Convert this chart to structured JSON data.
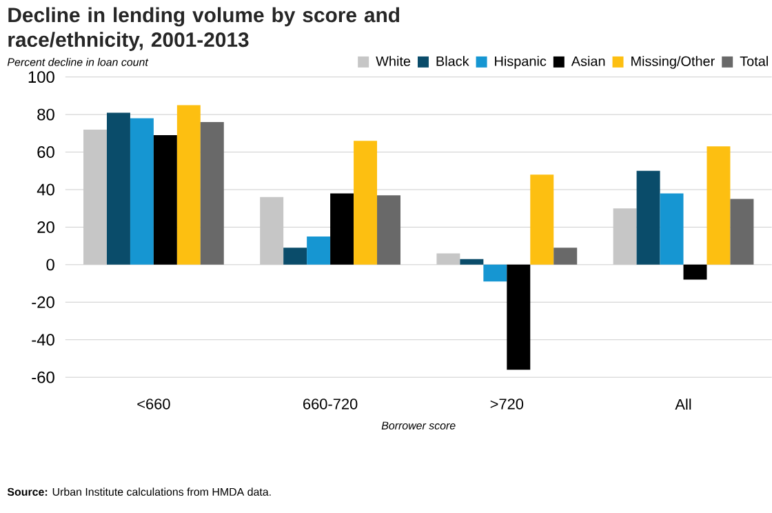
{
  "chart_data": {
    "type": "bar",
    "title": "Decline in lending volume by score and race/ethnicity, 2001-2013",
    "ylabel": "Percent decline in loan count",
    "xlabel": "Borrower score",
    "categories": [
      "<660",
      "660-720",
      ">720",
      "All"
    ],
    "series": [
      {
        "name": "White",
        "color": "#c6c6c6",
        "values": [
          72,
          36,
          6,
          30
        ]
      },
      {
        "name": "Black",
        "color": "#0a4c6a",
        "values": [
          81,
          9,
          3,
          50
        ]
      },
      {
        "name": "Hispanic",
        "color": "#1696d2",
        "values": [
          78,
          15,
          -9,
          38
        ]
      },
      {
        "name": "Asian",
        "color": "#000000",
        "values": [
          69,
          38,
          -56,
          -8
        ]
      },
      {
        "name": "Missing/Other",
        "color": "#fdbf11",
        "values": [
          85,
          66,
          48,
          63
        ]
      },
      {
        "name": "Total",
        "color": "#696969",
        "values": [
          76,
          37,
          9,
          35
        ]
      }
    ],
    "ylim": [
      -60,
      100
    ],
    "yticks": [
      -60,
      -40,
      -20,
      0,
      20,
      40,
      60,
      80,
      100
    ],
    "grid": "y",
    "legend": "top right",
    "annotations": [
      "**Source:** Urban Institute calculations from HMDA data."
    ]
  }
}
